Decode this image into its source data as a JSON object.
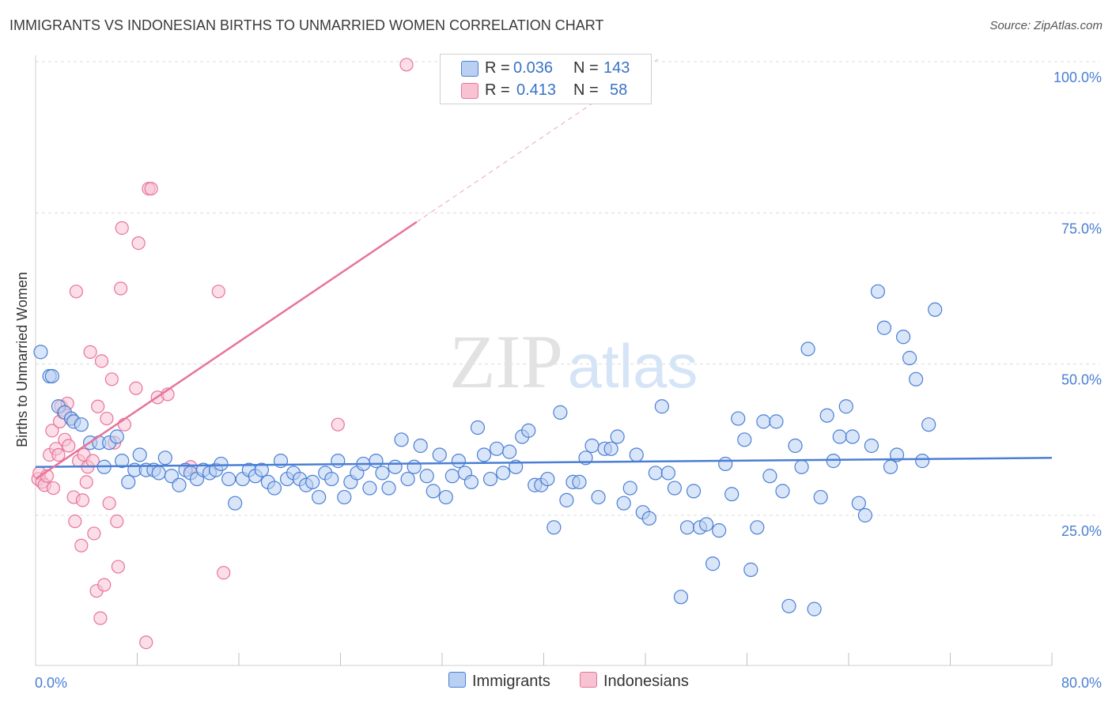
{
  "title": "IMMIGRANTS VS INDONESIAN BIRTHS TO UNMARRIED WOMEN CORRELATION CHART",
  "source": "Source: ZipAtlas.com",
  "watermark": {
    "zip": "ZIP",
    "atlas": "atlas"
  },
  "colors": {
    "blue": "#4a7fd4",
    "blue_fill": "#b9d0f2",
    "pink": "#e8739a",
    "pink_fill": "#f7c3d3",
    "grid": "#dcdcdc",
    "axis_text": "#4a7fd4"
  },
  "legend": {
    "rows": [
      {
        "r_label": "R =",
        "r_value": "0.036",
        "n_label": "N =",
        "n_value": "143"
      },
      {
        "r_label": "R =",
        "r_value": "0.413",
        "n_label": "N =",
        "n_value": "58"
      }
    ]
  },
  "bottom_legend": {
    "immigrants": "Immigrants",
    "indonesians": "Indonesians"
  },
  "chart_data": {
    "type": "scatter",
    "title": "IMMIGRANTS VS INDONESIAN BIRTHS TO UNMARRIED WOMEN CORRELATION CHART",
    "xlabel": "",
    "ylabel": "Births to Unmarried Women",
    "xlim": [
      0,
      80
    ],
    "ylim": [
      0,
      102
    ],
    "x_tick_labels": [
      "0.0%",
      "80.0%"
    ],
    "y_tick_labels": [
      {
        "value": 100,
        "label": "100.0%"
      },
      {
        "value": 75,
        "label": "75.0%"
      },
      {
        "value": 50,
        "label": "50.0%"
      },
      {
        "value": 25,
        "label": "25.0%"
      }
    ],
    "series": [
      {
        "name": "Immigrants",
        "R": 0.036,
        "N": 143,
        "trend": {
          "x": [
            0,
            80
          ],
          "y": [
            33.0,
            34.5
          ]
        },
        "points": [
          [
            0.4,
            52
          ],
          [
            1.1,
            48
          ],
          [
            1.3,
            48
          ],
          [
            1.8,
            43
          ],
          [
            2.3,
            42
          ],
          [
            2.8,
            41
          ],
          [
            3.0,
            40.5
          ],
          [
            3.6,
            40
          ],
          [
            4.3,
            37
          ],
          [
            5.0,
            37
          ],
          [
            5.4,
            33
          ],
          [
            5.8,
            37
          ],
          [
            6.4,
            38
          ],
          [
            6.8,
            34
          ],
          [
            7.3,
            30.5
          ],
          [
            7.8,
            32.5
          ],
          [
            8.2,
            35
          ],
          [
            8.7,
            32.5
          ],
          [
            9.3,
            32.5
          ],
          [
            9.7,
            32
          ],
          [
            10.2,
            34.5
          ],
          [
            10.7,
            31.5
          ],
          [
            11.3,
            30
          ],
          [
            11.8,
            32.5
          ],
          [
            12.2,
            32
          ],
          [
            12.7,
            31
          ],
          [
            13.2,
            32.5
          ],
          [
            13.7,
            32
          ],
          [
            14.2,
            32.5
          ],
          [
            14.6,
            33.5
          ],
          [
            15.2,
            31
          ],
          [
            15.7,
            27
          ],
          [
            16.3,
            31
          ],
          [
            16.8,
            32.5
          ],
          [
            17.3,
            31.5
          ],
          [
            17.8,
            32.5
          ],
          [
            18.3,
            30.5
          ],
          [
            18.8,
            29.5
          ],
          [
            19.3,
            34
          ],
          [
            19.8,
            31
          ],
          [
            20.3,
            32
          ],
          [
            20.8,
            31
          ],
          [
            21.3,
            30
          ],
          [
            21.8,
            30.5
          ],
          [
            22.3,
            28
          ],
          [
            22.8,
            32
          ],
          [
            23.3,
            31
          ],
          [
            23.8,
            34
          ],
          [
            24.3,
            28
          ],
          [
            24.8,
            30.5
          ],
          [
            25.3,
            32
          ],
          [
            25.8,
            33.5
          ],
          [
            26.3,
            29.5
          ],
          [
            26.8,
            34
          ],
          [
            27.3,
            32
          ],
          [
            27.8,
            29.5
          ],
          [
            28.3,
            33
          ],
          [
            28.8,
            37.5
          ],
          [
            29.3,
            31
          ],
          [
            29.8,
            33
          ],
          [
            30.3,
            36.5
          ],
          [
            30.8,
            31.5
          ],
          [
            31.3,
            29
          ],
          [
            31.8,
            35
          ],
          [
            32.3,
            28
          ],
          [
            32.8,
            31.5
          ],
          [
            33.3,
            34
          ],
          [
            33.8,
            32
          ],
          [
            34.3,
            30.5
          ],
          [
            34.8,
            39.5
          ],
          [
            35.3,
            35
          ],
          [
            35.8,
            31
          ],
          [
            36.3,
            36
          ],
          [
            36.8,
            32
          ],
          [
            37.3,
            35.5
          ],
          [
            37.8,
            33
          ],
          [
            38.3,
            38
          ],
          [
            38.8,
            39
          ],
          [
            39.3,
            30
          ],
          [
            39.8,
            30
          ],
          [
            40.3,
            31
          ],
          [
            40.8,
            23
          ],
          [
            41.3,
            42
          ],
          [
            41.8,
            27.5
          ],
          [
            42.3,
            30.5
          ],
          [
            42.8,
            30.5
          ],
          [
            43.3,
            34.5
          ],
          [
            43.8,
            36.5
          ],
          [
            44.3,
            28
          ],
          [
            44.8,
            36
          ],
          [
            45.3,
            36
          ],
          [
            45.8,
            38
          ],
          [
            46.3,
            27
          ],
          [
            46.8,
            29.5
          ],
          [
            47.3,
            35
          ],
          [
            47.8,
            25.5
          ],
          [
            48.3,
            24.5
          ],
          [
            48.8,
            32
          ],
          [
            49.3,
            43
          ],
          [
            49.8,
            32
          ],
          [
            50.3,
            29.5
          ],
          [
            50.8,
            11.5
          ],
          [
            51.3,
            23
          ],
          [
            51.8,
            29
          ],
          [
            52.3,
            23
          ],
          [
            52.8,
            23.5
          ],
          [
            53.3,
            17
          ],
          [
            53.8,
            22.5
          ],
          [
            54.3,
            33.5
          ],
          [
            54.8,
            28.5
          ],
          [
            55.3,
            41
          ],
          [
            55.8,
            37.5
          ],
          [
            56.3,
            16
          ],
          [
            56.8,
            23
          ],
          [
            57.3,
            40.5
          ],
          [
            57.8,
            31.5
          ],
          [
            58.3,
            40.5
          ],
          [
            58.8,
            29
          ],
          [
            59.3,
            10
          ],
          [
            59.8,
            36.5
          ],
          [
            60.3,
            33
          ],
          [
            60.8,
            52.5
          ],
          [
            61.3,
            9.5
          ],
          [
            61.8,
            28
          ],
          [
            62.3,
            41.5
          ],
          [
            62.8,
            34
          ],
          [
            63.3,
            38
          ],
          [
            63.8,
            43
          ],
          [
            64.3,
            38
          ],
          [
            64.8,
            27
          ],
          [
            65.3,
            25
          ],
          [
            65.8,
            36.5
          ],
          [
            66.3,
            62
          ],
          [
            66.8,
            56
          ],
          [
            67.3,
            33
          ],
          [
            67.8,
            35
          ],
          [
            68.3,
            54.5
          ],
          [
            68.8,
            51
          ],
          [
            69.3,
            47.5
          ],
          [
            69.8,
            34
          ],
          [
            70.3,
            40
          ],
          [
            70.8,
            59
          ]
        ]
      },
      {
        "name": "Indonesians",
        "R": 0.413,
        "N": 58,
        "trend": {
          "x": [
            0,
            30
          ],
          "y": [
            31.0,
            73.5
          ]
        },
        "points": [
          [
            0.2,
            31
          ],
          [
            0.3,
            32
          ],
          [
            0.5,
            30.5
          ],
          [
            0.7,
            30
          ],
          [
            0.9,
            31.5
          ],
          [
            1.1,
            35
          ],
          [
            1.3,
            39
          ],
          [
            1.4,
            29.5
          ],
          [
            1.6,
            36
          ],
          [
            1.8,
            35
          ],
          [
            1.9,
            40.5
          ],
          [
            2.0,
            43
          ],
          [
            2.2,
            42
          ],
          [
            2.3,
            37.5
          ],
          [
            2.5,
            43.5
          ],
          [
            2.6,
            36.5
          ],
          [
            2.8,
            41
          ],
          [
            3.0,
            28
          ],
          [
            3.1,
            24
          ],
          [
            3.2,
            62
          ],
          [
            3.4,
            34
          ],
          [
            3.6,
            20
          ],
          [
            3.7,
            27.5
          ],
          [
            3.8,
            35
          ],
          [
            4.0,
            30.5
          ],
          [
            4.1,
            33
          ],
          [
            4.3,
            52
          ],
          [
            4.5,
            34
          ],
          [
            4.6,
            22
          ],
          [
            4.8,
            12.5
          ],
          [
            4.9,
            43
          ],
          [
            5.1,
            8
          ],
          [
            5.2,
            50.5
          ],
          [
            5.4,
            13.5
          ],
          [
            5.6,
            41
          ],
          [
            5.8,
            27
          ],
          [
            6.0,
            47.5
          ],
          [
            6.2,
            37
          ],
          [
            6.4,
            24
          ],
          [
            6.5,
            16.5
          ],
          [
            6.7,
            62.5
          ],
          [
            6.8,
            72.5
          ],
          [
            7.0,
            40
          ],
          [
            7.9,
            46
          ],
          [
            8.1,
            70
          ],
          [
            8.7,
            4
          ],
          [
            8.9,
            79
          ],
          [
            9.1,
            79
          ],
          [
            9.6,
            44.5
          ],
          [
            10.4,
            45
          ],
          [
            12.2,
            33
          ],
          [
            14.4,
            62
          ],
          [
            14.8,
            15.5
          ],
          [
            23.8,
            40
          ],
          [
            29.2,
            99.5
          ]
        ]
      }
    ]
  }
}
